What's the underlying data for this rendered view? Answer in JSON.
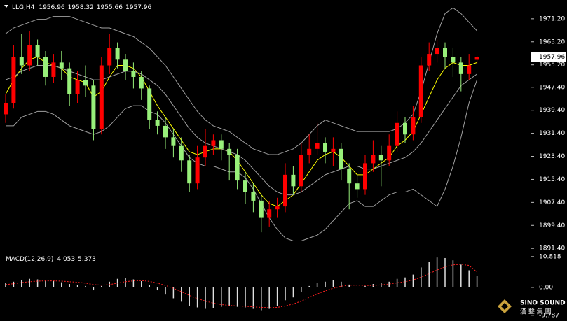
{
  "chart_data": [
    {
      "type": "candlestick",
      "symbol": "LLG,H4",
      "up_color": "#ff0000",
      "down_color": "#98f07a",
      "open": [
        1938,
        1942,
        1958,
        1955,
        1962,
        1958,
        1951,
        1956,
        1954,
        1945,
        1950,
        1948,
        1933,
        1955,
        1961,
        1957,
        1953,
        1951,
        1947,
        1936,
        1934,
        1930,
        1927,
        1922,
        1914,
        1923,
        1927,
        1929,
        1926,
        1924,
        1915,
        1911,
        1908,
        1902,
        1905,
        1906,
        1917,
        1913,
        1924,
        1926,
        1928,
        1925,
        1926,
        1919,
        1914,
        1912,
        1921,
        1924,
        1922,
        1927,
        1935,
        1931,
        1937,
        1955,
        1959,
        1961,
        1958,
        1956,
        1952,
        1956.96
      ],
      "high": [
        1945,
        1962,
        1966,
        1967,
        1964,
        1960,
        1959,
        1960,
        1956,
        1953,
        1955,
        1950,
        1958,
        1966,
        1963,
        1959,
        1956,
        1953,
        1948,
        1939,
        1937,
        1933,
        1930,
        1924,
        1927,
        1933,
        1931,
        1931,
        1928,
        1926,
        1918,
        1914,
        1910,
        1908,
        1909,
        1921,
        1920,
        1928,
        1931,
        1935,
        1930,
        1930,
        1928,
        1921,
        1917,
        1924,
        1929,
        1927,
        1931,
        1939,
        1937,
        1941,
        1958,
        1963,
        1964,
        1963,
        1961,
        1958,
        1959,
        1958.32
      ],
      "low": [
        1935,
        1940,
        1952,
        1953,
        1955,
        1948,
        1949,
        1950,
        1941,
        1942,
        1944,
        1929,
        1931,
        1952,
        1954,
        1950,
        1947,
        1943,
        1933,
        1931,
        1926,
        1923,
        1918,
        1911,
        1912,
        1920,
        1924,
        1922,
        1915,
        1912,
        1907,
        1904,
        1897,
        1899,
        1902,
        1904,
        1910,
        1911,
        1921,
        1924,
        1921,
        1920,
        1915,
        1905,
        1909,
        1910,
        1918,
        1913,
        1920,
        1925,
        1928,
        1929,
        1935,
        1953,
        1956,
        1954,
        1951,
        1946,
        1950,
        1955.66
      ],
      "close": [
        1942,
        1958,
        1955,
        1962,
        1958,
        1951,
        1956,
        1954,
        1945,
        1950,
        1948,
        1933,
        1955,
        1961,
        1957,
        1953,
        1951,
        1947,
        1936,
        1934,
        1930,
        1927,
        1922,
        1914,
        1923,
        1927,
        1929,
        1926,
        1924,
        1915,
        1911,
        1908,
        1902,
        1905,
        1906,
        1917,
        1913,
        1924,
        1926,
        1928,
        1925,
        1926,
        1919,
        1914,
        1912,
        1921,
        1924,
        1922,
        1927,
        1935,
        1931,
        1937,
        1955,
        1959,
        1961,
        1958,
        1956,
        1952,
        1955,
        1957.96
      ],
      "lines": [
        {
          "color": "#ffff00",
          "values": [
            1945,
            1950,
            1954,
            1957,
            1958,
            1956,
            1955,
            1954,
            1951,
            1950,
            1949,
            1944,
            1946,
            1951,
            1955,
            1955,
            1954,
            1951,
            1946,
            1941,
            1937,
            1933,
            1929,
            1925,
            1924,
            1925,
            1926,
            1926,
            1925,
            1922,
            1918,
            1914,
            1910,
            1907,
            1906,
            1908,
            1910,
            1914,
            1918,
            1922,
            1924,
            1925,
            1923,
            1920,
            1917,
            1917,
            1919,
            1921,
            1923,
            1927,
            1929,
            1932,
            1938,
            1944,
            1950,
            1954,
            1956,
            1955,
            1955,
            1956
          ]
        },
        {
          "color": "#a0a0a0",
          "values": [
            1950,
            1951,
            1953,
            1954,
            1955,
            1955,
            1955,
            1954,
            1953,
            1952,
            1951,
            1950,
            1950,
            1951,
            1952,
            1953,
            1953,
            1952,
            1950,
            1948,
            1945,
            1941,
            1937,
            1933,
            1930,
            1928,
            1927,
            1926,
            1925,
            1924,
            1922,
            1919,
            1916,
            1913,
            1911,
            1910,
            1910,
            1911,
            1913,
            1915,
            1917,
            1918,
            1919,
            1920,
            1920,
            1919,
            1919,
            1920,
            1921,
            1922,
            1923,
            1925,
            1928,
            1932,
            1936,
            1940,
            1944,
            1948,
            1950,
            1952
          ]
        },
        {
          "color": "#a0a0a0",
          "values": [
            1966,
            1968,
            1969,
            1970,
            1971,
            1971,
            1972,
            1972,
            1972,
            1971,
            1970,
            1969,
            1968,
            1968,
            1967,
            1966,
            1965,
            1963,
            1961,
            1958,
            1955,
            1951,
            1947,
            1943,
            1939,
            1936,
            1934,
            1933,
            1932,
            1930,
            1928,
            1926,
            1925,
            1924,
            1924,
            1925,
            1926,
            1928,
            1931,
            1934,
            1936,
            1935,
            1934,
            1933,
            1932,
            1932,
            1932,
            1932,
            1932,
            1933,
            1935,
            1938,
            1946,
            1956,
            1966,
            1973,
            1975,
            1973,
            1970,
            1967
          ]
        },
        {
          "color": "#a0a0a0",
          "values": [
            1934,
            1934,
            1937,
            1938,
            1939,
            1939,
            1938,
            1936,
            1934,
            1933,
            1932,
            1931,
            1932,
            1934,
            1937,
            1940,
            1941,
            1941,
            1939,
            1938,
            1935,
            1931,
            1927,
            1923,
            1921,
            1920,
            1920,
            1919,
            1918,
            1918,
            1916,
            1912,
            1907,
            1902,
            1898,
            1895,
            1894,
            1894,
            1895,
            1896,
            1898,
            1901,
            1904,
            1907,
            1908,
            1906,
            1906,
            1908,
            1910,
            1911,
            1911,
            1912,
            1910,
            1908,
            1906,
            1912,
            1920,
            1930,
            1942,
            1950
          ]
        }
      ],
      "ylim": [
        1891.2,
        1977.0
      ],
      "yticks": [
        {
          "value": 1971.2,
          "label": "1971.20"
        },
        {
          "value": 1963.2,
          "label": "1963.20"
        },
        {
          "value": 1955.2,
          "label": "1955.20"
        },
        {
          "value": 1947.4,
          "label": "1947.40"
        },
        {
          "value": 1939.4,
          "label": "1939.40"
        },
        {
          "value": 1931.4,
          "label": "1931.40"
        },
        {
          "value": 1923.4,
          "label": "1923.40"
        },
        {
          "value": 1915.4,
          "label": "1915.40"
        },
        {
          "value": 1907.4,
          "label": "1907.40"
        },
        {
          "value": 1899.4,
          "label": "1899.40"
        },
        {
          "value": 1891.4,
          "label": "1891.40"
        }
      ]
    },
    {
      "type": "macd",
      "label": "MACD(12,26,9)",
      "histogram": {
        "color": "#e0e0e0",
        "values": [
          1.5,
          2.0,
          2.5,
          3.0,
          2.8,
          2.5,
          2.2,
          1.8,
          1.2,
          0.8,
          0.5,
          -1.0,
          0.5,
          2.0,
          3.0,
          3.2,
          2.8,
          2.2,
          0.8,
          -1.0,
          -2.5,
          -3.8,
          -5.0,
          -6.5,
          -7.0,
          -7.5,
          -7.2,
          -6.8,
          -6.5,
          -6.8,
          -7.0,
          -7.5,
          -8.0,
          -7.5,
          -6.5,
          -4.5,
          -3.5,
          -1.5,
          0.5,
          1.5,
          2.0,
          2.5,
          2.0,
          1.0,
          0.2,
          0.5,
          1.2,
          1.6,
          2.0,
          3.0,
          3.5,
          4.5,
          7.0,
          9.0,
          10.5,
          10.3,
          9.5,
          8.0,
          6.0,
          4.053
        ]
      },
      "signal": {
        "color": "#ff2020",
        "values": [
          1.0,
          1.3,
          1.7,
          2.0,
          2.2,
          2.3,
          2.3,
          2.2,
          2.0,
          1.8,
          1.5,
          1.0,
          0.8,
          1.0,
          1.5,
          2.0,
          2.3,
          2.4,
          2.1,
          1.5,
          0.7,
          -0.3,
          -1.5,
          -2.8,
          -3.9,
          -4.8,
          -5.5,
          -6.0,
          -6.3,
          -6.5,
          -6.6,
          -6.8,
          -7.0,
          -7.1,
          -7.0,
          -6.5,
          -5.8,
          -4.8,
          -3.5,
          -2.3,
          -1.2,
          -0.3,
          0.4,
          0.8,
          0.8,
          0.7,
          0.7,
          0.9,
          1.2,
          1.6,
          2.0,
          2.6,
          3.6,
          4.8,
          6.1,
          7.2,
          7.9,
          8.1,
          7.7,
          5.373
        ]
      },
      "ylim": [
        -11.05,
        12.5
      ],
      "yticks": [
        10.818,
        {
          "value": 0,
          "label": "0.00"
        },
        -9.787
      ]
    }
  ],
  "logo": {
    "en": "SINO SOUND",
    "zh": "漢 聲 集 團"
  }
}
